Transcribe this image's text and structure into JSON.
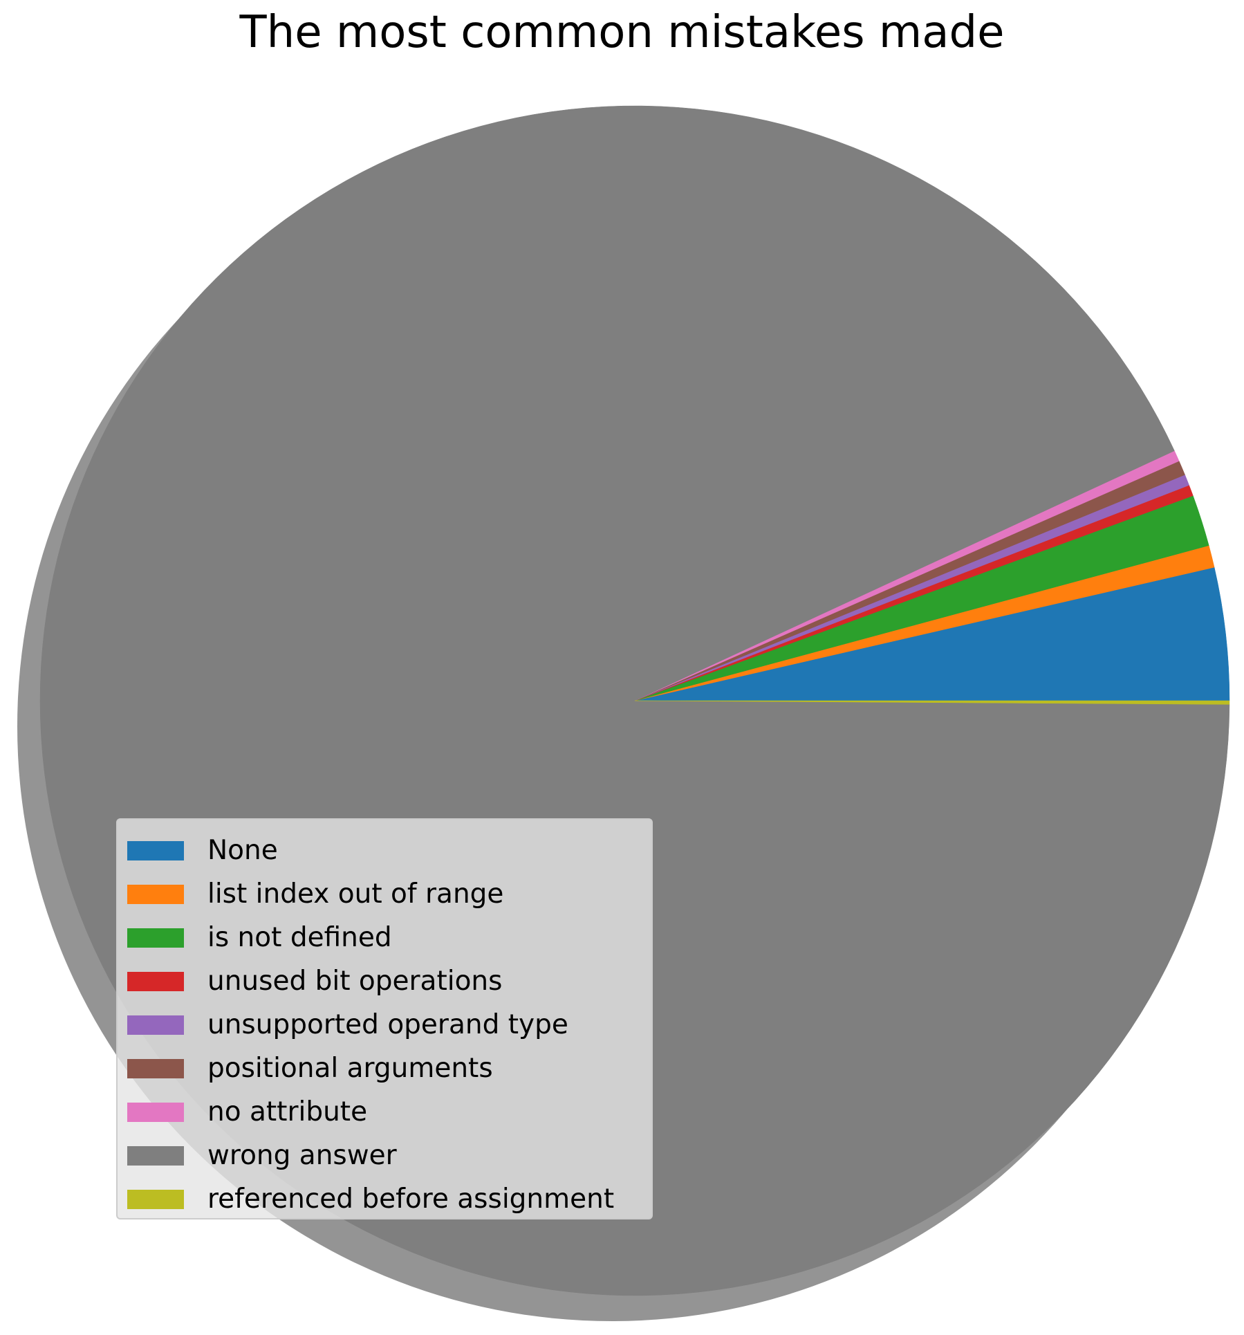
{
  "chart_data": {
    "type": "pie",
    "title": "The most common mistakes made",
    "start_angle_deg": 0,
    "counterclock": true,
    "shadow": true,
    "legend_position": "lower-left",
    "slices": [
      {
        "label": "None",
        "value": 3.6,
        "color": "#1f77b4"
      },
      {
        "label": "list index out of range",
        "value": 0.6,
        "color": "#ff7f0e"
      },
      {
        "label": "is not defined",
        "value": 1.4,
        "color": "#2ca02c"
      },
      {
        "label": "unused bit operations",
        "value": 0.3,
        "color": "#d62728"
      },
      {
        "label": "unsupported operand type",
        "value": 0.3,
        "color": "#9467bd"
      },
      {
        "label": "positional arguments",
        "value": 0.4,
        "color": "#8c564b"
      },
      {
        "label": "no attribute",
        "value": 0.3,
        "color": "#e377c2"
      },
      {
        "label": "wrong answer",
        "value": 93.0,
        "color": "#7f7f7f"
      },
      {
        "label": "referenced before assignment",
        "value": 0.1,
        "color": "#bcbd22"
      }
    ]
  }
}
